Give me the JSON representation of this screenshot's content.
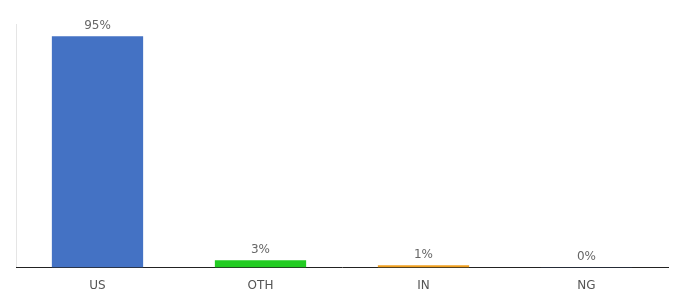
{
  "chart_data": {
    "type": "bar",
    "categories": [
      "US",
      "OTH",
      "IN",
      "NG"
    ],
    "values": [
      95,
      3,
      1,
      0.15
    ],
    "value_labels": [
      "95%",
      "3%",
      "1%",
      "0%"
    ],
    "colors": [
      "#4472c4",
      "#22cc22",
      "#f0a020",
      "#4472c4"
    ],
    "ylim": [
      0,
      100
    ],
    "grid": false,
    "data_labels": true,
    "tick_labels": "x"
  }
}
